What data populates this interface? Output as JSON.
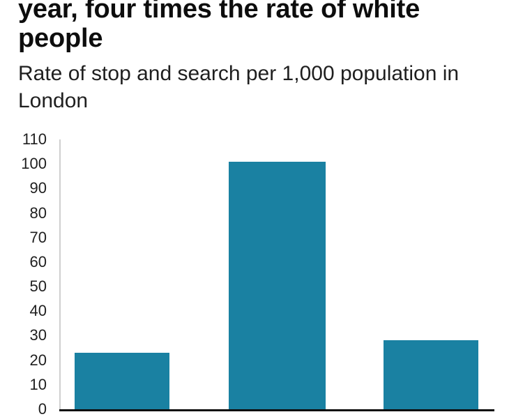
{
  "header": {
    "headline": "year, four times the rate of white people",
    "subtitle": "Rate of stop and search per 1,000 population in London"
  },
  "chart_data": {
    "type": "bar",
    "title": "year, four times the rate of white people",
    "subtitle": "Rate of stop and search per 1,000 population in London",
    "categories": [
      "",
      "",
      ""
    ],
    "values": [
      23,
      101,
      28
    ],
    "xlabel": "",
    "ylabel": "",
    "ylim": [
      0,
      110
    ],
    "yticks": [
      0,
      10,
      20,
      30,
      40,
      50,
      60,
      70,
      80,
      90,
      100,
      110
    ],
    "grid": false,
    "legend": false,
    "bar_color": "#1a81a2",
    "axis_line_color": "#cfcfcf",
    "baseline_color": "#0d0d0d",
    "tick_label_color": "#1f1f1f"
  }
}
